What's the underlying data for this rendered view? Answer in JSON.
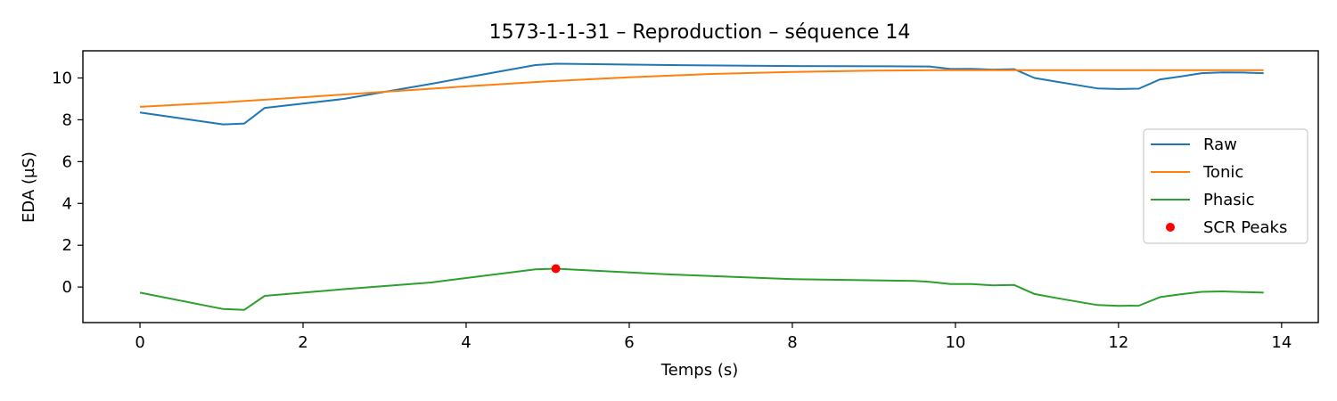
{
  "chart_data": {
    "type": "line",
    "title": "1573-1-1-31 – Reproduction – séquence 14",
    "xlabel": "Temps (s)",
    "ylabel": "EDA (µS)",
    "xlim": [
      -0.7,
      14.45
    ],
    "ylim": [
      -1.7,
      11.3
    ],
    "xticks": [
      0,
      2,
      4,
      6,
      8,
      10,
      12,
      14
    ],
    "xtick_labels": [
      "0",
      "2",
      "4",
      "6",
      "8",
      "10",
      "12",
      "14"
    ],
    "yticks": [
      0,
      2,
      4,
      6,
      8,
      10
    ],
    "ytick_labels": [
      "0",
      "2",
      "4",
      "6",
      "8",
      "10"
    ],
    "grid": false,
    "legend_position": "center-right",
    "series": [
      {
        "name": "Raw",
        "kind": "line",
        "color": "#1f77b4",
        "x": [
          0,
          1.02,
          1.28,
          1.53,
          2.5,
          3.57,
          4.85,
          5.1,
          6.5,
          8.0,
          9.2,
          9.68,
          9.94,
          10.2,
          10.46,
          10.72,
          10.97,
          11.23,
          11.74,
          12.0,
          12.25,
          12.51,
          12.76,
          13.02,
          13.27,
          13.53,
          13.78
        ],
        "y": [
          8.35,
          7.78,
          7.82,
          8.57,
          9.0,
          9.72,
          10.62,
          10.68,
          10.62,
          10.57,
          10.56,
          10.55,
          10.43,
          10.44,
          10.4,
          10.42,
          10.0,
          9.83,
          9.5,
          9.47,
          9.49,
          9.93,
          10.07,
          10.23,
          10.27,
          10.26,
          10.23
        ]
      },
      {
        "name": "Tonic",
        "kind": "line",
        "color": "#ff7f0e",
        "x": [
          0,
          1.0,
          2.0,
          3.0,
          4.0,
          5.0,
          6.0,
          7.0,
          8.0,
          9.0,
          9.7,
          10.5,
          11.0,
          12.0,
          13.0,
          13.78
        ],
        "y": [
          8.62,
          8.83,
          9.08,
          9.34,
          9.6,
          9.84,
          10.03,
          10.19,
          10.29,
          10.35,
          10.37,
          10.37,
          10.37,
          10.37,
          10.37,
          10.37
        ]
      },
      {
        "name": "Phasic",
        "kind": "line",
        "color": "#2ca02c",
        "x": [
          0,
          1.02,
          1.28,
          1.53,
          2.5,
          3.57,
          4.85,
          5.1,
          6.5,
          8.0,
          9.5,
          9.68,
          9.94,
          10.2,
          10.46,
          10.72,
          10.97,
          11.23,
          11.74,
          12.0,
          12.25,
          12.51,
          12.76,
          13.02,
          13.27,
          13.53,
          13.78
        ],
        "y": [
          -0.27,
          -1.05,
          -1.09,
          -0.42,
          -0.1,
          0.22,
          0.85,
          0.88,
          0.6,
          0.38,
          0.29,
          0.25,
          0.14,
          0.14,
          0.08,
          0.1,
          -0.33,
          -0.52,
          -0.86,
          -0.9,
          -0.89,
          -0.48,
          -0.35,
          -0.23,
          -0.21,
          -0.24,
          -0.27
        ]
      },
      {
        "name": "SCR Peaks",
        "kind": "scatter",
        "color": "#ff0000",
        "x": [
          5.1
        ],
        "y": [
          0.88
        ]
      }
    ]
  }
}
